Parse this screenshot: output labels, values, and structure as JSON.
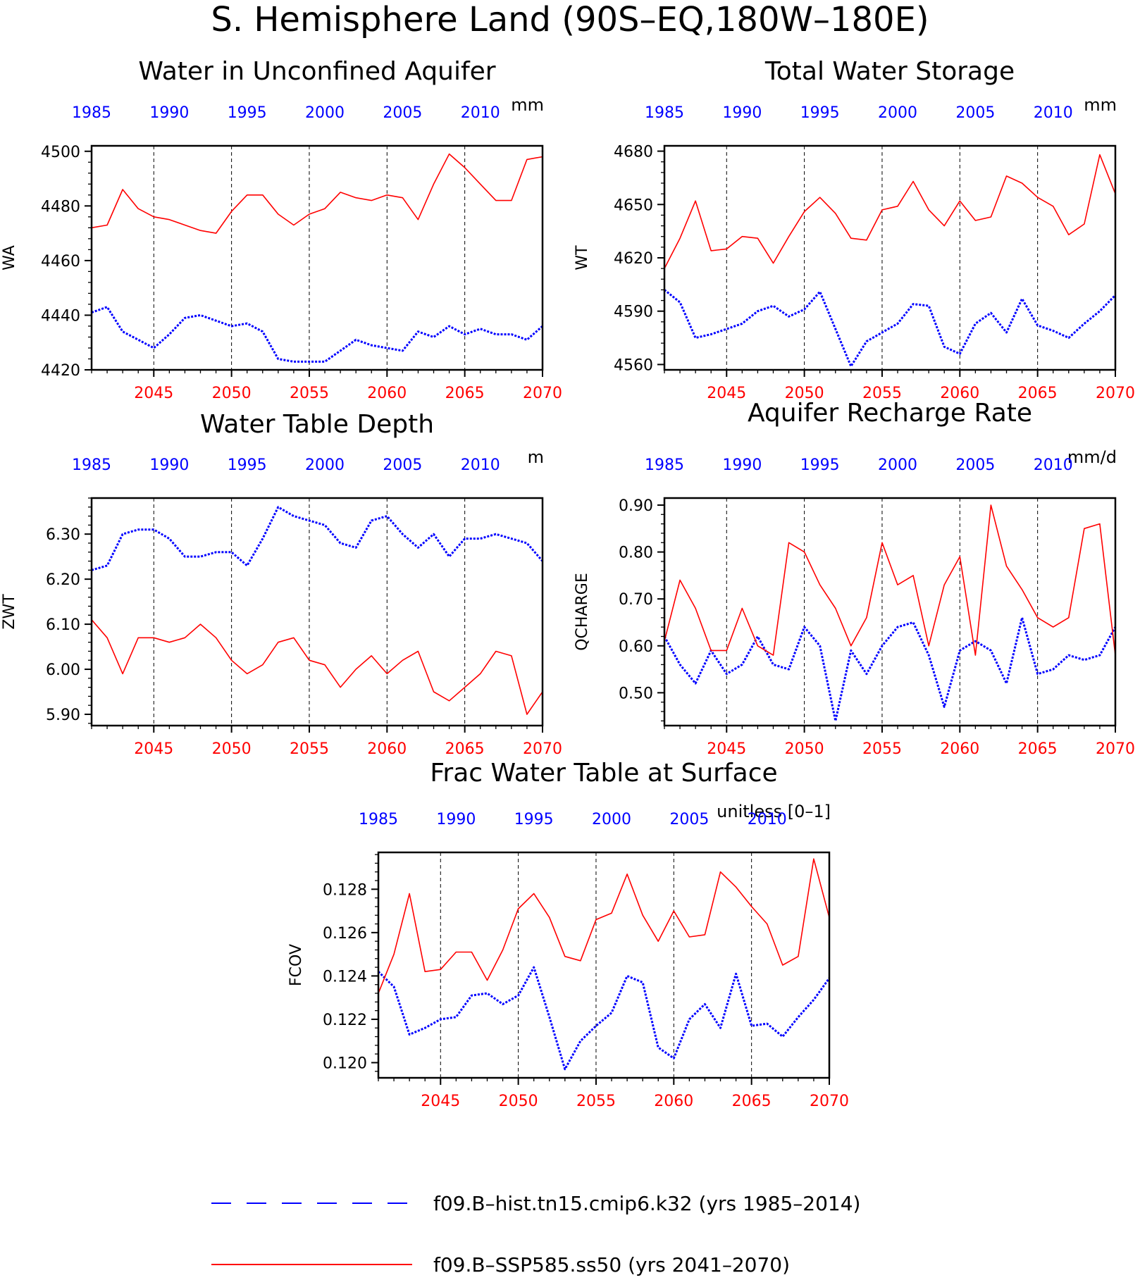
{
  "title": "S. Hemisphere Land (90S–EQ,180W–180E)",
  "colors": {
    "hist": "#0000ff",
    "ssp": "#ff0000",
    "axes": "#000000"
  },
  "legend": [
    {
      "label": "f09.B–hist.tn15.cmip6.k32 (yrs 1985–2014)",
      "color": "#0000ff",
      "style": "dashed"
    },
    {
      "label": "f09.B–SSP585.ss50 (yrs 2041–2070)",
      "color": "#ff0000",
      "style": "solid"
    }
  ],
  "chart_data": [
    {
      "type": "line",
      "title": "Water in Unconfined Aquifer",
      "units": "mm",
      "ylabel": "WA",
      "ylim": [
        4420,
        4502
      ],
      "yticks": [
        4420,
        4440,
        4460,
        4480,
        4500
      ],
      "ytick_labels": [
        "4420",
        "4440",
        "4460",
        "4480",
        "4500"
      ],
      "top_axis": {
        "range": [
          1985,
          2014
        ],
        "ticks": [
          1985,
          1990,
          1995,
          2000,
          2005,
          2010
        ]
      },
      "bottom_axis": {
        "range": [
          2041,
          2070
        ],
        "ticks": [
          2045,
          2050,
          2055,
          2060,
          2065,
          2070
        ]
      },
      "series": [
        {
          "name": "f09.B–hist.tn15.cmip6.k32 (yrs 1985–2014)",
          "color": "#0000ff",
          "style": "dotted",
          "x": [
            1985,
            1986,
            1987,
            1988,
            1989,
            1990,
            1991,
            1992,
            1993,
            1994,
            1995,
            1996,
            1997,
            1998,
            1999,
            2000,
            2001,
            2002,
            2003,
            2004,
            2005,
            2006,
            2007,
            2008,
            2009,
            2010,
            2011,
            2012,
            2013,
            2014
          ],
          "values": [
            4441,
            4443,
            4434,
            4431,
            4428,
            4433,
            4439,
            4440,
            4438,
            4436,
            4437,
            4434,
            4424,
            4423,
            4423,
            4423,
            4427,
            4431,
            4429,
            4428,
            4427,
            4434,
            4432,
            4436,
            4433,
            4435,
            4433,
            4433,
            4431,
            4436
          ]
        },
        {
          "name": "f09.B–SSP585.ss50 (yrs 2041–2070)",
          "color": "#ff0000",
          "style": "solid",
          "x": [
            2041,
            2042,
            2043,
            2044,
            2045,
            2046,
            2047,
            2048,
            2049,
            2050,
            2051,
            2052,
            2053,
            2054,
            2055,
            2056,
            2057,
            2058,
            2059,
            2060,
            2061,
            2062,
            2063,
            2064,
            2065,
            2066,
            2067,
            2068,
            2069,
            2070
          ],
          "values": [
            4472,
            4473,
            4486,
            4479,
            4476,
            4475,
            4473,
            4471,
            4470,
            4478,
            4484,
            4484,
            4477,
            4473,
            4477,
            4479,
            4485,
            4483,
            4482,
            4484,
            4483,
            4475,
            4488,
            4499,
            4494,
            4488,
            4482,
            4482,
            4497,
            4498
          ]
        }
      ]
    },
    {
      "type": "line",
      "title": "Total Water Storage",
      "units": "mm",
      "ylabel": "WT",
      "ylim": [
        4557,
        4683
      ],
      "yticks": [
        4560,
        4590,
        4620,
        4650,
        4680
      ],
      "ytick_labels": [
        "4560",
        "4590",
        "4620",
        "4650",
        "4680"
      ],
      "top_axis": {
        "range": [
          1985,
          2014
        ],
        "ticks": [
          1985,
          1990,
          1995,
          2000,
          2005,
          2010
        ]
      },
      "bottom_axis": {
        "range": [
          2041,
          2070
        ],
        "ticks": [
          2045,
          2050,
          2055,
          2060,
          2065,
          2070
        ]
      },
      "series": [
        {
          "name": "f09.B–hist.tn15.cmip6.k32 (yrs 1985–2014)",
          "color": "#0000ff",
          "style": "dotted",
          "x": [
            1985,
            1986,
            1987,
            1988,
            1989,
            1990,
            1991,
            1992,
            1993,
            1994,
            1995,
            1996,
            1997,
            1998,
            1999,
            2000,
            2001,
            2002,
            2003,
            2004,
            2005,
            2006,
            2007,
            2008,
            2009,
            2010,
            2011,
            2012,
            2013,
            2014
          ],
          "values": [
            4602,
            4595,
            4575,
            4577,
            4580,
            4583,
            4590,
            4593,
            4587,
            4591,
            4601,
            4580,
            4559,
            4573,
            4578,
            4583,
            4594,
            4593,
            4570,
            4566,
            4583,
            4589,
            4578,
            4597,
            4582,
            4579,
            4575,
            4583,
            4590,
            4599
          ]
        },
        {
          "name": "f09.B–SSP585.ss50 (yrs 2041–2070)",
          "color": "#ff0000",
          "style": "solid",
          "x": [
            2041,
            2042,
            2043,
            2044,
            2045,
            2046,
            2047,
            2048,
            2049,
            2050,
            2051,
            2052,
            2053,
            2054,
            2055,
            2056,
            2057,
            2058,
            2059,
            2060,
            2061,
            2062,
            2063,
            2064,
            2065,
            2066,
            2067,
            2068,
            2069,
            2070
          ],
          "values": [
            4614,
            4631,
            4652,
            4624,
            4625,
            4632,
            4631,
            4617,
            4632,
            4646,
            4654,
            4645,
            4631,
            4630,
            4647,
            4649,
            4663,
            4647,
            4638,
            4652,
            4641,
            4643,
            4666,
            4662,
            4654,
            4649,
            4633,
            4639,
            4678,
            4656
          ]
        }
      ]
    },
    {
      "type": "line",
      "title": "Water Table Depth",
      "units": "m",
      "ylabel": "ZWT",
      "ylim": [
        5.875,
        6.38
      ],
      "yticks": [
        5.9,
        6.0,
        6.1,
        6.2,
        6.3
      ],
      "ytick_labels": [
        "5.90",
        "6.00",
        "6.10",
        "6.20",
        "6.30"
      ],
      "top_axis": {
        "range": [
          1985,
          2014
        ],
        "ticks": [
          1985,
          1990,
          1995,
          2000,
          2005,
          2010
        ]
      },
      "bottom_axis": {
        "range": [
          2041,
          2070
        ],
        "ticks": [
          2045,
          2050,
          2055,
          2060,
          2065,
          2070
        ]
      },
      "series": [
        {
          "name": "f09.B–hist.tn15.cmip6.k32 (yrs 1985–2014)",
          "color": "#0000ff",
          "style": "dotted",
          "x": [
            1985,
            1986,
            1987,
            1988,
            1989,
            1990,
            1991,
            1992,
            1993,
            1994,
            1995,
            1996,
            1997,
            1998,
            1999,
            2000,
            2001,
            2002,
            2003,
            2004,
            2005,
            2006,
            2007,
            2008,
            2009,
            2010,
            2011,
            2012,
            2013,
            2014
          ],
          "values": [
            6.22,
            6.23,
            6.3,
            6.31,
            6.31,
            6.29,
            6.25,
            6.25,
            6.26,
            6.26,
            6.23,
            6.29,
            6.36,
            6.34,
            6.33,
            6.32,
            6.28,
            6.27,
            6.33,
            6.34,
            6.3,
            6.27,
            6.3,
            6.25,
            6.29,
            6.29,
            6.3,
            6.29,
            6.28,
            6.24
          ]
        },
        {
          "name": "f09.B–SSP585.ss50 (yrs 2041–2070)",
          "color": "#ff0000",
          "style": "solid",
          "x": [
            2041,
            2042,
            2043,
            2044,
            2045,
            2046,
            2047,
            2048,
            2049,
            2050,
            2051,
            2052,
            2053,
            2054,
            2055,
            2056,
            2057,
            2058,
            2059,
            2060,
            2061,
            2062,
            2063,
            2064,
            2065,
            2066,
            2067,
            2068,
            2069,
            2070
          ],
          "values": [
            6.11,
            6.07,
            5.99,
            6.07,
            6.07,
            6.06,
            6.07,
            6.1,
            6.07,
            6.02,
            5.99,
            6.01,
            6.06,
            6.07,
            6.02,
            6.01,
            5.96,
            6.0,
            6.03,
            5.99,
            6.02,
            6.04,
            5.95,
            5.93,
            5.96,
            5.99,
            6.04,
            6.03,
            5.9,
            5.95
          ]
        }
      ]
    },
    {
      "type": "line",
      "title": "Aquifer Recharge Rate",
      "units": "mm/d",
      "ylabel": "QCHARGE",
      "ylim": [
        0.43,
        0.915
      ],
      "yticks": [
        0.5,
        0.6,
        0.7,
        0.8,
        0.9
      ],
      "ytick_labels": [
        "0.50",
        "0.60",
        "0.70",
        "0.80",
        "0.90"
      ],
      "top_axis": {
        "range": [
          1985,
          2014
        ],
        "ticks": [
          1985,
          1990,
          1995,
          2000,
          2005,
          2010
        ]
      },
      "bottom_axis": {
        "range": [
          2041,
          2070
        ],
        "ticks": [
          2045,
          2050,
          2055,
          2060,
          2065,
          2070
        ]
      },
      "series": [
        {
          "name": "f09.B–hist.tn15.cmip6.k32 (yrs 1985–2014)",
          "color": "#0000ff",
          "style": "dotted",
          "x": [
            1985,
            1986,
            1987,
            1988,
            1989,
            1990,
            1991,
            1992,
            1993,
            1994,
            1995,
            1996,
            1997,
            1998,
            1999,
            2000,
            2001,
            2002,
            2003,
            2004,
            2005,
            2006,
            2007,
            2008,
            2009,
            2010,
            2011,
            2012,
            2013,
            2014
          ],
          "values": [
            0.62,
            0.56,
            0.52,
            0.59,
            0.54,
            0.56,
            0.62,
            0.56,
            0.55,
            0.64,
            0.6,
            0.44,
            0.59,
            0.54,
            0.6,
            0.64,
            0.65,
            0.58,
            0.47,
            0.59,
            0.61,
            0.59,
            0.52,
            0.66,
            0.54,
            0.55,
            0.58,
            0.57,
            0.58,
            0.64
          ]
        },
        {
          "name": "f09.B–SSP585.ss50 (yrs 2041–2070)",
          "color": "#ff0000",
          "style": "solid",
          "x": [
            2041,
            2042,
            2043,
            2044,
            2045,
            2046,
            2047,
            2048,
            2049,
            2050,
            2051,
            2052,
            2053,
            2054,
            2055,
            2056,
            2057,
            2058,
            2059,
            2060,
            2061,
            2062,
            2063,
            2064,
            2065,
            2066,
            2067,
            2068,
            2069,
            2070
          ],
          "values": [
            0.61,
            0.74,
            0.68,
            0.59,
            0.59,
            0.68,
            0.6,
            0.58,
            0.82,
            0.8,
            0.73,
            0.68,
            0.6,
            0.66,
            0.82,
            0.73,
            0.75,
            0.6,
            0.73,
            0.79,
            0.58,
            0.9,
            0.77,
            0.72,
            0.66,
            0.64,
            0.66,
            0.85,
            0.86,
            0.58
          ]
        }
      ]
    },
    {
      "type": "line",
      "title": "Frac Water Table at Surface",
      "units": "unitless [0–1]",
      "ylabel": "FCOV",
      "ylim": [
        0.1193,
        0.1297
      ],
      "yticks": [
        0.12,
        0.122,
        0.124,
        0.126,
        0.128
      ],
      "ytick_labels": [
        "0.120",
        "0.122",
        "0.124",
        "0.126",
        "0.128"
      ],
      "top_axis": {
        "range": [
          1985,
          2014
        ],
        "ticks": [
          1985,
          1990,
          1995,
          2000,
          2005,
          2010
        ]
      },
      "bottom_axis": {
        "range": [
          2041,
          2070
        ],
        "ticks": [
          2045,
          2050,
          2055,
          2060,
          2065,
          2070
        ]
      },
      "series": [
        {
          "name": "f09.B–hist.tn15.cmip6.k32 (yrs 1985–2014)",
          "color": "#0000ff",
          "style": "dotted",
          "x": [
            1985,
            1986,
            1987,
            1988,
            1989,
            1990,
            1991,
            1992,
            1993,
            1994,
            1995,
            1996,
            1997,
            1998,
            1999,
            2000,
            2001,
            2002,
            2003,
            2004,
            2005,
            2006,
            2007,
            2008,
            2009,
            2010,
            2011,
            2012,
            2013,
            2014
          ],
          "values": [
            0.1242,
            0.1235,
            0.1213,
            0.1216,
            0.122,
            0.1221,
            0.1231,
            0.1232,
            0.1227,
            0.1231,
            0.1244,
            0.1221,
            0.1197,
            0.121,
            0.1217,
            0.1223,
            0.124,
            0.1237,
            0.1207,
            0.1202,
            0.122,
            0.1227,
            0.1216,
            0.1241,
            0.1217,
            0.1218,
            0.1212,
            0.1221,
            0.1229,
            0.1239
          ]
        },
        {
          "name": "f09.B–SSP585.ss50 (yrs 2041–2070)",
          "color": "#ff0000",
          "style": "solid",
          "x": [
            2041,
            2042,
            2043,
            2044,
            2045,
            2046,
            2047,
            2048,
            2049,
            2050,
            2051,
            2052,
            2053,
            2054,
            2055,
            2056,
            2057,
            2058,
            2059,
            2060,
            2061,
            2062,
            2063,
            2064,
            2065,
            2066,
            2067,
            2068,
            2069,
            2070
          ],
          "values": [
            0.1232,
            0.125,
            0.1278,
            0.1242,
            0.1243,
            0.1251,
            0.1251,
            0.1238,
            0.1252,
            0.1271,
            0.1278,
            0.1267,
            0.1249,
            0.1247,
            0.1266,
            0.1269,
            0.1287,
            0.1268,
            0.1256,
            0.127,
            0.1258,
            0.1259,
            0.1288,
            0.1281,
            0.1272,
            0.1264,
            0.1245,
            0.1249,
            0.1294,
            0.1267
          ]
        }
      ]
    }
  ]
}
